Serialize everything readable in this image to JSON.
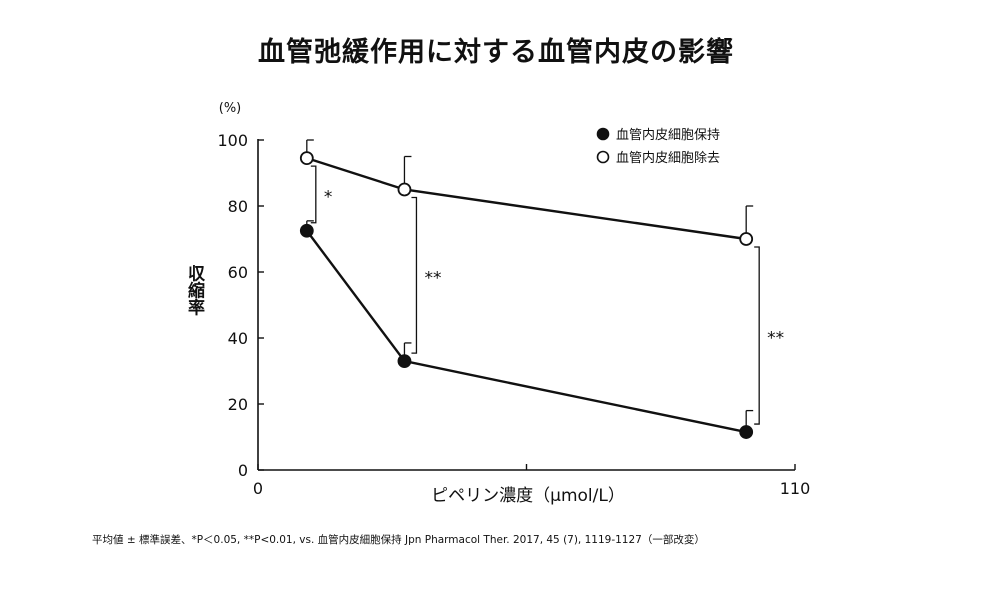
{
  "chart_data": {
    "type": "line",
    "title": "血管弛緩作用に対する血管内皮の影響",
    "xlabel": "ピペリン濃度（μmol/L）",
    "ylabel": "収縮率",
    "yunit": "(%)",
    "xlim": [
      0,
      110
    ],
    "ylim": [
      0,
      100
    ],
    "x_tick_labels": [
      "0",
      "110"
    ],
    "y_ticks": [
      0,
      20,
      40,
      60,
      80,
      100
    ],
    "legend_position": "top-right",
    "grid": false,
    "series": [
      {
        "name": "血管内皮細胞保持",
        "marker": "filled",
        "x": [
          10,
          30,
          100
        ],
        "y": [
          72.5,
          33,
          11.5
        ],
        "error": [
          3,
          5.5,
          6.5
        ]
      },
      {
        "name": "血管内皮細胞除去",
        "marker": "open",
        "x": [
          10,
          30,
          100
        ],
        "y": [
          94.5,
          85,
          70
        ],
        "error": [
          5.5,
          10,
          10
        ]
      }
    ],
    "significance": [
      {
        "x": 10,
        "label": "*"
      },
      {
        "x": 30,
        "label": "**"
      },
      {
        "x": 100,
        "label": "**"
      }
    ]
  },
  "footnote": "平均値 ± 標準誤差、*P＜0.05, **P<0.01, vs. 血管内皮細胞保持 Jpn Pharmacol Ther. 2017, 45 (7), 1119-1127（一部改変）"
}
